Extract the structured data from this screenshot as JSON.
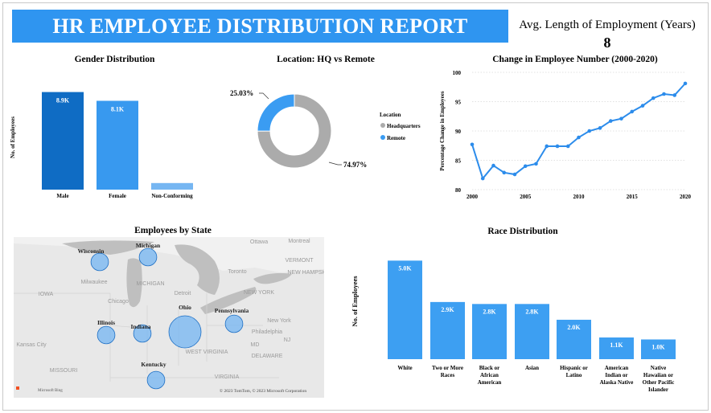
{
  "header": {
    "title": "HR EMPLOYEE DISTRIBUTION REPORT",
    "avg_label": "Avg. Length of Employment (Years)",
    "avg_value": "8"
  },
  "colors": {
    "banner": "#2f95f0",
    "male": "#0f6cc4",
    "female": "#3899ef",
    "nonconforming": "#76b6f2",
    "hq": "#ababab",
    "remote": "#3a9cf2",
    "line": "#2c8ceb",
    "race": "#3d9ff2"
  },
  "chart_data": [
    {
      "id": "gender",
      "type": "bar",
      "title": "Gender Distribution",
      "ylabel": "No. of Employees",
      "categories": [
        "Male",
        "Female",
        "Non-Conforming"
      ],
      "values": [
        8.9,
        8.1,
        0.6
      ],
      "data_labels": [
        "8.9K",
        "8.1K",
        ""
      ],
      "ylim": [
        0,
        9.6
      ],
      "grid": false
    },
    {
      "id": "location",
      "type": "pie",
      "title": "Location: HQ vs Remote",
      "legend_title": "Location",
      "labels": [
        "Headquarters",
        "Remote"
      ],
      "values": [
        74.97,
        25.03
      ],
      "data_labels": [
        "74.97%",
        "25.03%"
      ],
      "legend_position": "right"
    },
    {
      "id": "change",
      "type": "line",
      "title": "Change in Employee Number (2000-2020)",
      "ylabel": "Percentage Change in Employees",
      "x": [
        2000,
        2001,
        2002,
        2003,
        2004,
        2005,
        2006,
        2007,
        2008,
        2009,
        2010,
        2011,
        2012,
        2013,
        2014,
        2015,
        2016,
        2017,
        2018,
        2019,
        2020
      ],
      "y": [
        87.7,
        81.9,
        84.1,
        82.9,
        82.6,
        84.0,
        84.4,
        87.4,
        87.4,
        87.4,
        88.9,
        90.0,
        90.5,
        91.7,
        92.1,
        93.3,
        94.3,
        95.6,
        96.3,
        96.1,
        98.1
      ],
      "xticks": [
        2000,
        2005,
        2010,
        2015,
        2020
      ],
      "yticks": [
        80,
        85,
        90,
        95,
        100
      ],
      "xlim": [
        2000,
        2020
      ],
      "ylim": [
        80,
        100
      ],
      "grid": true
    },
    {
      "id": "race",
      "type": "bar",
      "title": "Race Distribution",
      "ylabel": "No. of Employees",
      "categories": [
        "White",
        "Two or More Races",
        "Black or African American",
        "Asian",
        "Hispanic or Latino",
        "American Indian or Alaska Native",
        "Native Hawaiian or Other Pacific Islander"
      ],
      "category_lines": [
        [
          "White"
        ],
        [
          "Two or More",
          "Races"
        ],
        [
          "Black or",
          "African",
          "American"
        ],
        [
          "Asian"
        ],
        [
          "Hispanic or",
          "Latino"
        ],
        [
          "American",
          "Indian or",
          "Alaska Native"
        ],
        [
          "Native",
          "Hawaiian or",
          "Other Pacific",
          "Islander"
        ]
      ],
      "values": [
        5.0,
        2.9,
        2.8,
        2.8,
        2.0,
        1.1,
        1.0
      ],
      "data_labels": [
        "5.0K",
        "2.9K",
        "2.8K",
        "2.8K",
        "2.0K",
        "1.1K",
        "1.0K"
      ],
      "ylim": [
        0,
        5.3
      ],
      "grid": false
    }
  ],
  "map": {
    "title": "Employees by State",
    "states": [
      {
        "name": "Wisconsin",
        "relative_size": 0.35
      },
      {
        "name": "Michigan",
        "relative_size": 0.35
      },
      {
        "name": "Illinois",
        "relative_size": 0.35
      },
      {
        "name": "Indiana",
        "relative_size": 0.35
      },
      {
        "name": "Ohio",
        "relative_size": 1.0
      },
      {
        "name": "Pennsylvania",
        "relative_size": 0.35
      },
      {
        "name": "Kentucky",
        "relative_size": 0.35
      }
    ],
    "background_labels": [
      "Ottawa",
      "Montreal",
      "Toronto",
      "VERMONT",
      "NEW HAMPSHIR",
      "Milwaukee",
      "MICHIGAN",
      "Detroit",
      "IOWA",
      "Chicago",
      "NEW YORK",
      "New York",
      "Philadelphia",
      "Kansas City",
      "MISSOURI",
      "WEST VIRGINIA",
      "VIRGINIA",
      "DELAWARE",
      "MD",
      "NJ"
    ],
    "attribution": "© 2023 TomTom, © 2023 Microsoft Corporation",
    "provider": "Microsoft Bing"
  }
}
